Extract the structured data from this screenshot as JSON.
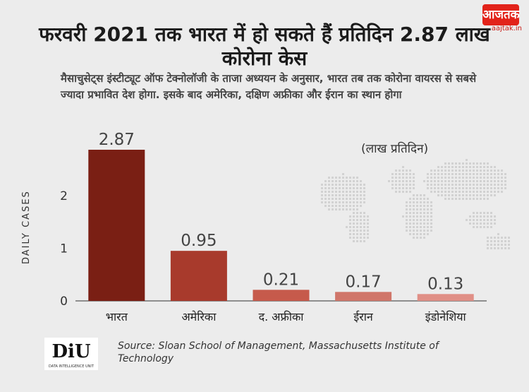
{
  "brand": {
    "logo_text": "आजतक",
    "site": "aajtak.in"
  },
  "headline": "फरवरी 2021 तक भारत में हो सकते हैं प्रतिदिन 2.87 लाख कोरोना केस",
  "subtitle": "मैसाचुसेट्स इंस्टीट्यूट ऑफ टेक्नोलॉजी के ताजा अध्ययन के अनुसार, भारत तब तक कोरोना वायरस से सबसे ज्यादा प्रभावित देश होगा. इसके बाद अमेरिका, दक्षिण अफ्रीका और ईरान का स्थान होगा",
  "chart_data": {
    "type": "bar",
    "categories": [
      "भारत",
      "अमेरिका",
      "द. अफ्रीका",
      "ईरान",
      "इंडोनेशिया"
    ],
    "values": [
      2.87,
      0.95,
      0.21,
      0.17,
      0.13
    ],
    "value_labels": [
      "2.87",
      "0.95",
      "0.21",
      "0.17",
      "0.13"
    ],
    "bar_colors": [
      "#7a1f14",
      "#a83a2c",
      "#c65a4b",
      "#d0766a",
      "#e08f86"
    ],
    "ylabel": "DAILY CASES",
    "unit_label": "(लाख प्रतिदिन)",
    "yticks": [
      0,
      1,
      2
    ],
    "ylim": [
      0,
      3.05
    ]
  },
  "footer": {
    "badge": "DiU",
    "badge_tagline": "DATA INTELLIGENCE UNIT",
    "source": "Source: Sloan School of Management, Massachusetts Institute of Technology"
  }
}
